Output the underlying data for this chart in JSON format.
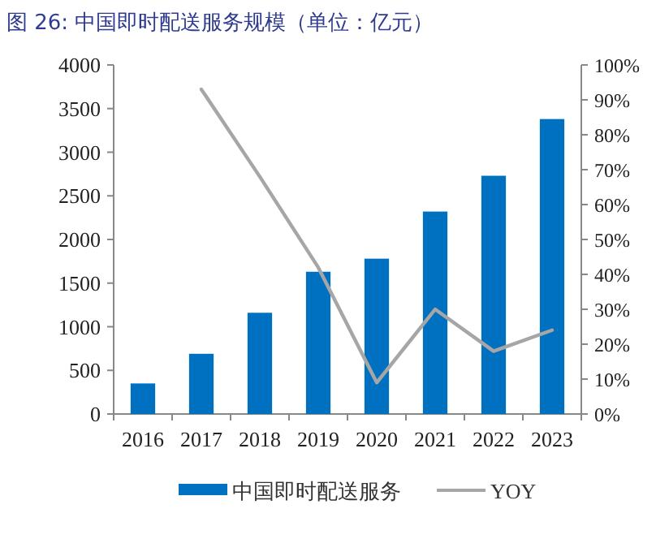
{
  "chart_data": {
    "type": "bar",
    "title": "图 26:  中国即时配送服务规模（单位：亿元）",
    "categories": [
      "2016",
      "2017",
      "2018",
      "2019",
      "2020",
      "2021",
      "2022",
      "2023"
    ],
    "series": [
      {
        "name": "中国即时配送服务",
        "color": "#0070c0",
        "values": [
          350,
          690,
          1160,
          1630,
          1780,
          2320,
          2730,
          3380
        ]
      },
      {
        "name": "YOY",
        "type": "line",
        "axis": "y2",
        "color": "#a6a6a6",
        "values": [
          null,
          93,
          68,
          42,
          9,
          30,
          18,
          24
        ]
      }
    ],
    "ylim": [
      0,
      4000
    ],
    "yticks": [
      0,
      500,
      1000,
      1500,
      2000,
      2500,
      3000,
      3500,
      4000
    ],
    "y2lim": [
      0,
      100
    ],
    "y2ticks": [
      {
        "value": 0,
        "label": "0%"
      },
      {
        "value": 10,
        "label": "10%"
      },
      {
        "value": 20,
        "label": "20%"
      },
      {
        "value": 30,
        "label": "30%"
      },
      {
        "value": 40,
        "label": "40%"
      },
      {
        "value": 50,
        "label": "50%"
      },
      {
        "value": 60,
        "label": "60%"
      },
      {
        "value": 70,
        "label": "70%"
      },
      {
        "value": 80,
        "label": "80%"
      },
      {
        "value": 90,
        "label": "90%"
      },
      {
        "value": 100,
        "label": "100%"
      }
    ],
    "legend": "bottom"
  }
}
